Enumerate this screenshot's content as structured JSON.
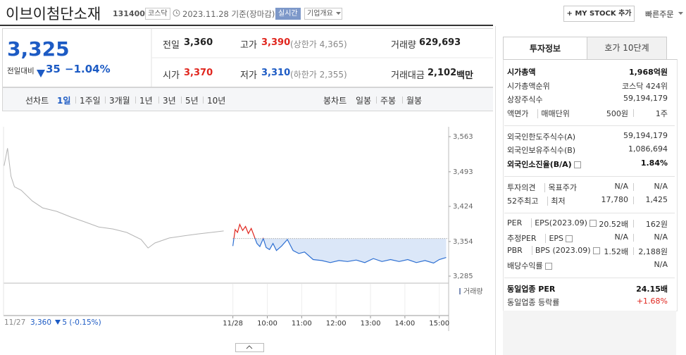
{
  "header": {
    "name": "이브이첨단소재",
    "code": "131400",
    "market": "코스닥",
    "date": "2023.11.28 기준(장마감)",
    "realtime": "실시간",
    "overview": "기업개요",
    "my_stock": "+ MY STOCK 추가",
    "quick_order": "빠른주문"
  },
  "price": {
    "current": "3,325",
    "change_label": "전일대비",
    "change": "35",
    "rate": "−1.04%"
  },
  "stats": [
    [
      {
        "label": "전일",
        "value": "3,360"
      },
      {
        "label": "고가",
        "value": "3,390",
        "note": "(상한가 4,365)"
      },
      {
        "label": "거래량",
        "value": "629,693"
      }
    ],
    [
      {
        "label": "시가",
        "value": "3,370"
      },
      {
        "label": "저가",
        "value": "3,310",
        "note": "(하한가 2,355)"
      },
      {
        "label": "거래대금",
        "value": "2,102",
        "unit": "백만"
      }
    ]
  ],
  "tabs": {
    "line_label": "선차트",
    "line": [
      "1일",
      "1주일",
      "3개월",
      "1년",
      "3년",
      "5년",
      "10년"
    ],
    "candle_label": "봉차트",
    "candle": [
      "일봉",
      "주봉",
      "월봉"
    ]
  },
  "chart": {
    "type": "line",
    "ylim": [
      3285,
      3563
    ],
    "yticks": [
      {
        "value": 3563,
        "label": "3,563"
      },
      {
        "value": 3493,
        "label": "3,493"
      },
      {
        "value": 3424,
        "label": "3,424"
      },
      {
        "value": 3354,
        "label": "3,354"
      },
      {
        "value": 3285,
        "label": "3,285"
      }
    ],
    "xlim": [
      -400,
      380
    ],
    "xticks": [
      {
        "value": 0,
        "label": "11/28"
      },
      {
        "value": 60,
        "label": "10:00"
      },
      {
        "value": 120,
        "label": "11:00"
      },
      {
        "value": 180,
        "label": "12:00"
      },
      {
        "value": 240,
        "label": "13:00"
      },
      {
        "value": 300,
        "label": "14:00"
      },
      {
        "value": 360,
        "label": "15:00"
      }
    ],
    "baseline": 3360,
    "series": [
      {
        "color": "#b4b4b4",
        "x": [
          -399,
          -393,
          -387,
          -381,
          -369,
          -350,
          -332,
          -307,
          -283,
          -258,
          -234,
          -209,
          -185,
          -160,
          -148,
          -136,
          -111,
          -87,
          -62,
          -38,
          -16
        ],
        "values": [
          3505,
          3540,
          3484,
          3463,
          3456,
          3435,
          3421,
          3414,
          3403,
          3393,
          3383,
          3379,
          3372,
          3358,
          3341,
          3351,
          3361,
          3365,
          3369,
          3372,
          3375
        ]
      },
      {
        "color_up": "#e0261e",
        "color_down": "#2d6fd2",
        "fill": "#dbe7f8",
        "x": [
          0,
          4,
          8,
          12,
          17,
          22,
          27,
          32,
          37,
          42,
          47,
          53,
          58,
          64,
          70,
          76,
          85,
          95,
          105,
          115,
          125,
          140,
          155,
          170,
          185,
          200,
          215,
          230,
          245,
          260,
          275,
          290,
          305,
          320,
          335,
          350,
          360,
          372
        ],
        "values": [
          3345,
          3378,
          3372,
          3388,
          3376,
          3384,
          3370,
          3380,
          3365,
          3350,
          3344,
          3360,
          3342,
          3338,
          3350,
          3336,
          3345,
          3358,
          3336,
          3330,
          3333,
          3318,
          3316,
          3312,
          3316,
          3314,
          3317,
          3312,
          3320,
          3314,
          3318,
          3314,
          3318,
          3312,
          3316,
          3311,
          3318,
          3322
        ]
      }
    ],
    "volume_label": "거래량",
    "prev_day": {
      "date": "11/27",
      "close": "3,360",
      "change": "5",
      "rate": "(-0.15%)"
    }
  },
  "info_tabs": [
    "투자정보",
    "호가 10단계"
  ],
  "info": [
    [
      {
        "label": [
          "시가총액"
        ],
        "value": [
          "1,968억원"
        ]
      },
      {
        "label": [
          "시가총액순위"
        ],
        "value": [
          "코스닥 424위"
        ]
      },
      {
        "label": [
          "상장주식수"
        ],
        "value": [
          "59,194,179"
        ]
      },
      {
        "label": [
          "액면가",
          "매매단위"
        ],
        "value": [
          "500원",
          "1주"
        ]
      }
    ],
    [
      {
        "label": [
          "외국인한도주식수(A)"
        ],
        "value": [
          "59,194,179"
        ]
      },
      {
        "label": [
          "외국인보유주식수(B)"
        ],
        "value": [
          "1,086,694"
        ]
      },
      {
        "label": [
          "외국인소진율(B/A)"
        ],
        "value": [
          "1.84%"
        ]
      }
    ],
    [
      {
        "label": [
          "투자의견",
          "목표주가"
        ],
        "value": [
          "N/A",
          "N/A"
        ]
      },
      {
        "label": [
          "52주최고",
          "최저"
        ],
        "value": [
          "17,780",
          "1,425"
        ]
      }
    ],
    [
      {
        "label": [
          "PER",
          "EPS(2023.09)"
        ],
        "value": [
          "20.52배",
          "162원"
        ]
      },
      {
        "label": [
          "추정PER",
          "EPS"
        ],
        "value": [
          "N/A",
          "N/A"
        ]
      },
      {
        "label": [
          "PBR",
          "BPS (2023.09)"
        ],
        "value": [
          "1.52배",
          "2,188원"
        ]
      },
      {
        "label": [
          "배당수익률"
        ],
        "value": [
          "N/A"
        ]
      }
    ],
    [
      {
        "label": [
          "동일업종 PER"
        ],
        "value": [
          "24.15배"
        ]
      },
      {
        "label": [
          "동일업종 등락률"
        ],
        "value": [
          "+1.68%"
        ]
      }
    ]
  ]
}
